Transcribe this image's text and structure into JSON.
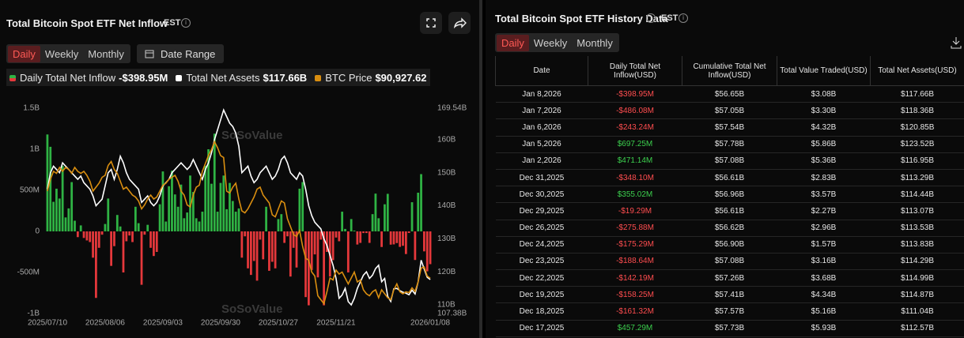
{
  "left_panel": {
    "title": "Total Bitcoin Spot ETF Net Inflow",
    "timezone": "EST",
    "tabs": [
      "Daily",
      "Weekly",
      "Monthly"
    ],
    "selected_tab": 0,
    "date_range": "Date Range",
    "watermark": "SoSoValue"
  },
  "chart_data": {
    "type": "bar",
    "categories": [
      "2025/07/10",
      null,
      null,
      null,
      null,
      null,
      null,
      null,
      null,
      null,
      null,
      null,
      null,
      null,
      null,
      null,
      null,
      null,
      null,
      "2025/08/06",
      null,
      null,
      null,
      null,
      null,
      null,
      null,
      null,
      null,
      null,
      null,
      null,
      null,
      null,
      null,
      null,
      null,
      null,
      "2025/09/03",
      null,
      null,
      null,
      null,
      null,
      null,
      null,
      null,
      null,
      null,
      null,
      null,
      null,
      null,
      null,
      null,
      null,
      null,
      "2025/09/30",
      null,
      null,
      null,
      null,
      null,
      null,
      null,
      null,
      null,
      null,
      null,
      null,
      null,
      null,
      null,
      null,
      null,
      null,
      "2025/10/27",
      null,
      null,
      null,
      null,
      null,
      null,
      null,
      null,
      null,
      null,
      null,
      null,
      null,
      null,
      null,
      null,
      null,
      null,
      "2025/11/21",
      null,
      null,
      null,
      null,
      null,
      null,
      null,
      null,
      null,
      null,
      null,
      null,
      null,
      null,
      null,
      null,
      null,
      null,
      null,
      null,
      null,
      null,
      null,
      null,
      null,
      null,
      null,
      null,
      null,
      null,
      "2026/01/08"
    ],
    "series": [
      {
        "name": "Daily Total Net Inflow",
        "type": "bar",
        "color": "#2fb344",
        "negative_color": "#e5383b",
        "latest": "-$398.95M",
        "values": [
          1180,
          1030,
          360,
          520,
          400,
          800,
          170,
          280,
          600,
          130,
          -70,
          73,
          -80,
          -110,
          -130,
          -320,
          -810,
          -200,
          -40,
          90,
          400,
          -420,
          -180,
          200,
          60,
          -500,
          -120,
          -50,
          -130,
          300,
          100,
          -650,
          -40,
          80,
          -200,
          -300,
          -250,
          330,
          730,
          120,
          550,
          740,
          450,
          300,
          570,
          160,
          230,
          680,
          480,
          160,
          120,
          240,
          800,
          1000,
          580,
          1190,
          240,
          590,
          680,
          270,
          590,
          370,
          240,
          280,
          -320,
          -60,
          -450,
          -530,
          -360,
          -600,
          -100,
          -340,
          300,
          -480,
          -370,
          -450,
          150,
          210,
          -140,
          -60,
          -550,
          -200,
          -440,
          520,
          600,
          -800,
          -900,
          -470,
          -280,
          -560,
          -100,
          -900,
          -250,
          -550,
          -350,
          -75,
          -120,
          240,
          30,
          -500,
          150,
          10,
          -160,
          -140,
          -20,
          -20,
          -140,
          210,
          460,
          160,
          -190,
          330,
          457.29,
          -161.32,
          -158.25,
          -142.19,
          -188.64,
          -175.29,
          -275.88,
          -19.29,
          355.02,
          -348.1,
          471.14,
          697.25,
          -243.24,
          -486.08,
          -398.95
        ]
      },
      {
        "name": "Total Net Assets",
        "type": "line",
        "axis": "y2",
        "color": "#ffffff",
        "latest": "$117.66B",
        "values": [
          145,
          150,
          152,
          151,
          150,
          153,
          152,
          151,
          150,
          149,
          148,
          149,
          147,
          146,
          145,
          143,
          140,
          141,
          142,
          146,
          150,
          151,
          148,
          151,
          155,
          153,
          150,
          148,
          147,
          146,
          145,
          141,
          142,
          143,
          141,
          140,
          141,
          143,
          146,
          147,
          148,
          150,
          151,
          152,
          153,
          152,
          151,
          152,
          154,
          152,
          150,
          148,
          151,
          153,
          156,
          160,
          163,
          166,
          169,
          167,
          165,
          164,
          162,
          158,
          150,
          151,
          152,
          149,
          147,
          148,
          150,
          151,
          152,
          150,
          148,
          149,
          151,
          154,
          155,
          153,
          150,
          149,
          148,
          150,
          149,
          145,
          140,
          137,
          135,
          134,
          133,
          130,
          128,
          125,
          122,
          118,
          112,
          113,
          115,
          111,
          110,
          112,
          115,
          117,
          119,
          120,
          118,
          119,
          121,
          122,
          117,
          118,
          112.57,
          111.04,
          114.87,
          114.99,
          114.29,
          113.83,
          113.53,
          113.07,
          114.44,
          113.29,
          116.95,
          123.52,
          120.85,
          118.36,
          117.66
        ]
      },
      {
        "name": "BTC Price",
        "type": "line",
        "axis": "y3",
        "color": "#d98e10",
        "latest": "$90,927.62",
        "values": [
          113000,
          116000,
          118000,
          117500,
          119000,
          118000,
          119000,
          118500,
          117500,
          119000,
          118000,
          117500,
          118000,
          117000,
          115500,
          113000,
          114000,
          115000,
          116500,
          117000,
          119500,
          120500,
          118500,
          117500,
          115500,
          113500,
          114000,
          113000,
          112000,
          111500,
          110500,
          108500,
          109500,
          111000,
          112000,
          111000,
          111500,
          113000,
          114500,
          115000,
          116000,
          116500,
          117000,
          115500,
          113000,
          112000,
          109500,
          109000,
          112000,
          114000,
          114500,
          118000,
          120000,
          122000,
          123500,
          125500,
          124000,
          122000,
          121500,
          113000,
          112500,
          114000,
          115000,
          111000,
          108000,
          107500,
          108500,
          110000,
          111500,
          113500,
          114000,
          112000,
          111000,
          110000,
          107000,
          106500,
          108500,
          110500,
          110000,
          106000,
          104000,
          102000,
          101500,
          103000,
          99000,
          96000,
          95500,
          92500,
          91500,
          86500,
          85500,
          84500,
          87500,
          91000,
          90500,
          93000,
          92000,
          92500,
          91000,
          89500,
          91000,
          92500,
          90000,
          90500,
          88000,
          87000,
          86500,
          87500,
          88000,
          86000,
          88000,
          87000,
          86000,
          85500,
          88000,
          89500,
          87500,
          87000,
          87500,
          87300,
          88500,
          87600,
          90000,
          93500,
          93800,
          91500,
          90927.62
        ]
      }
    ],
    "ylim": [
      -1000,
      1500
    ],
    "yticks": [
      {
        "value": 1500,
        "label": "1.5B"
      },
      {
        "value": 1000,
        "label": "1B"
      },
      {
        "value": 500,
        "label": "500M"
      },
      0,
      {
        "value": -500,
        "label": "-500M"
      },
      {
        "value": -1000,
        "label": "-1B"
      }
    ],
    "y2lim": [
      107.38,
      169.54
    ],
    "y2ticks": [
      {
        "value": 169.54,
        "label": "169.54B"
      },
      {
        "value": 160,
        "label": "160B"
      },
      {
        "value": 150,
        "label": "150B"
      },
      {
        "value": 140,
        "label": "140B"
      },
      {
        "value": 130,
        "label": "130B"
      },
      {
        "value": 120,
        "label": "120B"
      },
      {
        "value": 110,
        "label": "110B"
      },
      {
        "value": 107.38,
        "label": "107.38B"
      }
    ],
    "y3lim": [
      82000,
      134000
    ],
    "grid": false
  },
  "right_panel": {
    "title": "Total Bitcoin Spot ETF History Data",
    "timezone": "EST",
    "tabs": [
      "Daily",
      "Weekly",
      "Monthly"
    ],
    "selected_tab": 0
  },
  "table": {
    "header": [
      "Date",
      "Daily Total Net Inflow(USD)",
      "Cumulative Total Net Inflow(USD)",
      "Total Value Traded(USD)",
      "Total Net Assets(USD)"
    ],
    "rows": [
      [
        "Jan 8,2026",
        "-$398.95M",
        "$56.65B",
        "$3.08B",
        "$117.66B"
      ],
      [
        "Jan 7,2026",
        "-$486.08M",
        "$57.05B",
        "$3.30B",
        "$118.36B"
      ],
      [
        "Jan 6,2026",
        "-$243.24M",
        "$57.54B",
        "$4.32B",
        "$120.85B"
      ],
      [
        "Jan 5,2026",
        "$697.25M",
        "$57.78B",
        "$5.86B",
        "$123.52B"
      ],
      [
        "Jan 2,2026",
        "$471.14M",
        "$57.08B",
        "$5.36B",
        "$116.95B"
      ],
      [
        "Dec 31,2025",
        "-$348.10M",
        "$56.61B",
        "$2.83B",
        "$113.29B"
      ],
      [
        "Dec 30,2025",
        "$355.02M",
        "$56.96B",
        "$3.57B",
        "$114.44B"
      ],
      [
        "Dec 29,2025",
        "-$19.29M",
        "$56.61B",
        "$2.27B",
        "$113.07B"
      ],
      [
        "Dec 26,2025",
        "-$275.88M",
        "$56.62B",
        "$2.96B",
        "$113.53B"
      ],
      [
        "Dec 24,2025",
        "-$175.29M",
        "$56.90B",
        "$1.57B",
        "$113.83B"
      ],
      [
        "Dec 23,2025",
        "-$188.64M",
        "$57.08B",
        "$3.16B",
        "$114.29B"
      ],
      [
        "Dec 22,2025",
        "-$142.19M",
        "$57.26B",
        "$3.68B",
        "$114.99B"
      ],
      [
        "Dec 19,2025",
        "-$158.25M",
        "$57.41B",
        "$4.34B",
        "$114.87B"
      ],
      [
        "Dec 18,2025",
        "-$161.32M",
        "$57.57B",
        "$5.16B",
        "$111.04B"
      ],
      [
        "Dec 17,2025",
        "$457.29M",
        "$57.73B",
        "$5.93B",
        "$112.57B"
      ]
    ]
  }
}
